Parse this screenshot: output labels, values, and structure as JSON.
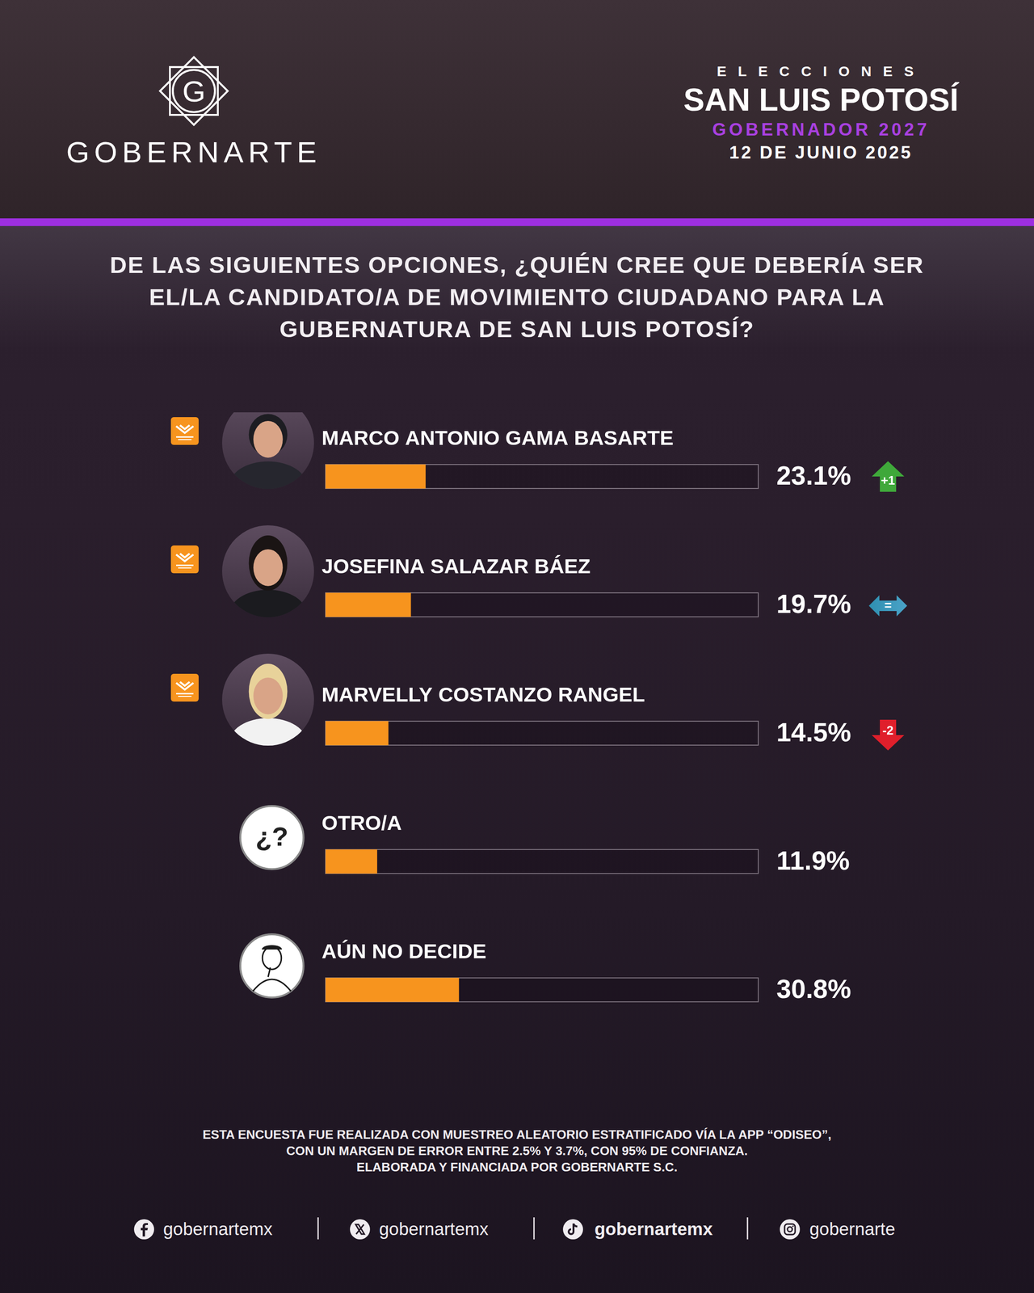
{
  "header": {
    "logo_letter": "G",
    "brand": "GOBERNARTE",
    "kicker": "ELECCIONES",
    "state": "SAN LUIS POTOSÍ",
    "race": "GOBERNADOR 2027",
    "date": "12 DE JUNIO 2025"
  },
  "chart_data": {
    "type": "bar",
    "orientation": "horizontal",
    "title": "DE LAS SIGUIENTES OPCIONES, ¿QUIÉN CREE QUE DEBERÍA SER EL/LA CANDIDATO/A DE MOVIMIENTO CIUDADANO PARA LA GUBERNATURA DE SAN LUIS POTOSÍ?",
    "categories": [
      "MARCO ANTONIO GAMA BASARTE",
      "JOSEFINA SALAZAR BÁEZ",
      "MARVELLY COSTANZO RANGEL",
      "OTRO/A",
      "AÚN NO DECIDE"
    ],
    "values": [
      23.1,
      19.7,
      14.5,
      11.9,
      30.8
    ],
    "value_labels": [
      "23.1%",
      "19.7%",
      "14.5%",
      "11.9%",
      "30.8%"
    ],
    "changes": [
      1,
      0,
      -2,
      null,
      null
    ],
    "change_labels": [
      "+1",
      "=",
      "-2",
      null,
      null
    ],
    "icon_labels": [
      null,
      null,
      null,
      "¿?",
      null
    ],
    "color": "#f7941e",
    "xlim": [
      0,
      100
    ],
    "grid": false,
    "tick_labels": false,
    "data_labels": true
  },
  "note": [
    "ESTA ENCUESTA FUE REALIZADA CON MUESTREO ALEATORIO ESTRATIFICADO VÍA LA APP “ODISEO”,",
    "CON UN MARGEN DE ERROR ENTRE 2.5% Y 3.7%, CON 95% DE CONFIANZA.",
    "ELABORADA Y FINANCIADA POR GOBERNARTE S.C."
  ],
  "social_handles": [
    "gobernartemx",
    "gobernartemx",
    "gobernartemx",
    "gobernarte"
  ]
}
